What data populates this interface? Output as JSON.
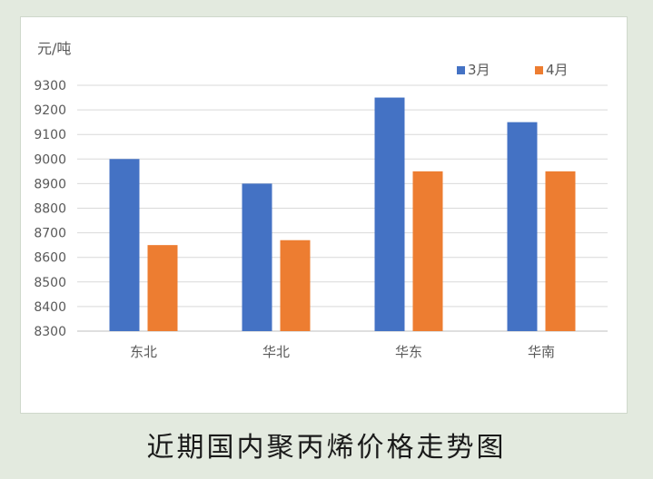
{
  "caption": "近期国内聚丙烯价格走势图",
  "chart_data": {
    "type": "bar",
    "ylabel": "元/吨",
    "categories": [
      "东北",
      "华北",
      "华东",
      "华南"
    ],
    "series": [
      {
        "name": "3月",
        "values": [
          9000,
          8900,
          9250,
          9150
        ],
        "color": "#4472c4"
      },
      {
        "name": "4月",
        "values": [
          8650,
          8670,
          8950,
          8950
        ],
        "color": "#ed7d31"
      }
    ],
    "ylim": [
      8300,
      9300
    ],
    "yticks": [
      8300,
      8400,
      8500,
      8600,
      8700,
      8800,
      8900,
      9000,
      9100,
      9200,
      9300
    ],
    "grid": true,
    "legend_position": "top-right"
  }
}
